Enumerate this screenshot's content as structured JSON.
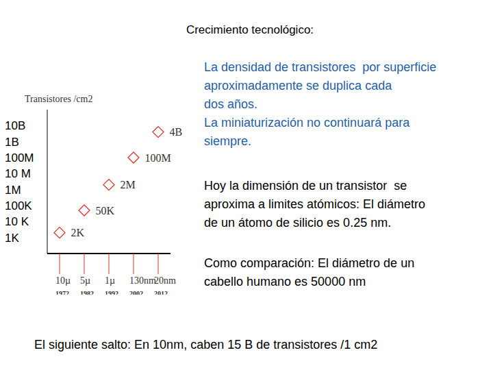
{
  "title": "Crecimiento tecnológico:",
  "chart_data": {
    "type": "scatter",
    "y_label": "Transistores /cm2",
    "categories": [
      "10µ",
      "5µ",
      "1µ",
      "130nm",
      "20nm"
    ],
    "years": [
      "1972",
      "1982",
      "1992",
      "2002",
      "2012"
    ],
    "values": [
      2000,
      50000,
      2000000,
      100000000,
      4000000000
    ],
    "value_labels": [
      "2K",
      "50K",
      "2M",
      "100M",
      "4B"
    ],
    "data_labels": true,
    "log": "y",
    "ylim": [
      100,
      100000000000
    ],
    "yticks": [
      {
        "value": 1000,
        "label": "1K"
      },
      {
        "value": 10000,
        "label": "10 K"
      },
      {
        "value": 100000,
        "label": "100K"
      },
      {
        "value": 1000000,
        "label": "1M"
      },
      {
        "value": 10000000,
        "label": "10 M"
      },
      {
        "value": 100000000,
        "label": "100M"
      },
      {
        "value": 1000000000,
        "label": "1B"
      },
      {
        "value": 10000000000,
        "label": "10B"
      }
    ],
    "color": "#e0302c",
    "marker": "diamond"
  },
  "paragraphs": [
    {
      "color": "#1f5fa8",
      "lines": [
        "La densidad de transistores  por superficie",
        "aproximadamente se duplica cada",
        "dos años.",
        "La miniaturización no continuará para",
        "siempre."
      ]
    },
    {
      "color": "#000000",
      "lines": [
        "Hoy la dimensión de un transistor  se",
        "aproxima a limites atómicos: El diámetro",
        "de un átomo de silicio es 0.25 nm."
      ]
    },
    {
      "color": "#000000",
      "lines": [
        "Como comparación: El diámetro de un",
        "cabello humano es 50000 nm"
      ]
    }
  ],
  "footer": "El siguiente salto: En 10nm, caben 15 B de transistores /1 cm2"
}
